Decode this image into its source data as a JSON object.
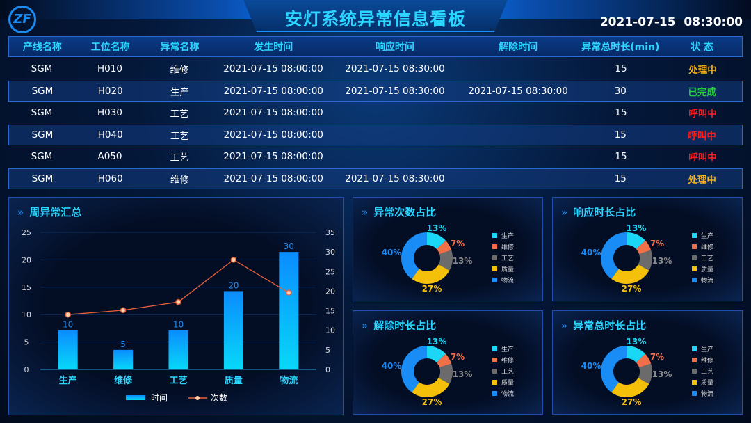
{
  "header": {
    "logo": "ZF",
    "title": "安灯系统异常信息看板",
    "date": "2021-07-15",
    "time": "08:30:00"
  },
  "table": {
    "columns": [
      "产线名称",
      "工位名称",
      "异常名称",
      "发生时间",
      "响应时间",
      "解除时间",
      "异常总时长(min)",
      "状 态"
    ],
    "rows": [
      [
        "SGM",
        "H010",
        "维修",
        "2021-07-15 08:00:00",
        "2021-07-15 08:30:00",
        "",
        "15",
        "处理中"
      ],
      [
        "SGM",
        "H020",
        "生产",
        "2021-07-15 08:00:00",
        "2021-07-15 08:30:00",
        "2021-07-15 08:30:00",
        "30",
        "已完成"
      ],
      [
        "SGM",
        "H030",
        "工艺",
        "2021-07-15 08:00:00",
        "",
        "",
        "15",
        "呼叫中"
      ],
      [
        "SGM",
        "H040",
        "工艺",
        "2021-07-15 08:00:00",
        "",
        "",
        "15",
        "呼叫中"
      ],
      [
        "SGM",
        "A050",
        "工艺",
        "2021-07-15 08:00:00",
        "",
        "",
        "15",
        "呼叫中"
      ],
      [
        "SGM",
        "H060",
        "维修",
        "2021-07-15 08:00:00",
        "2021-07-15 08:30:00",
        "",
        "15",
        "处理中"
      ]
    ],
    "status_colors": {
      "处理中": "#f5b21a",
      "已完成": "#22d03a",
      "呼叫中": "#ff1a1a"
    }
  },
  "chart_data": {
    "type": "bar",
    "title": "周异常汇总",
    "categories": [
      "生产",
      "维修",
      "工艺",
      "质量",
      "物流"
    ],
    "left_axis": {
      "ylim": [
        0,
        25
      ],
      "ticks": [
        "0",
        "5",
        "10",
        "15",
        "20",
        "25"
      ]
    },
    "right_axis": {
      "ylim": [
        0,
        35
      ],
      "ticks": [
        "0",
        "5",
        "10",
        "15",
        "20",
        "25",
        "30",
        "35"
      ]
    },
    "series": [
      {
        "name": "时间",
        "type": "bar",
        "axis": "right",
        "values": [
          10,
          5,
          10,
          20,
          30
        ]
      },
      {
        "name": "次数",
        "type": "line",
        "axis": "left",
        "values": [
          10,
          10.8,
          12.3,
          20,
          14
        ]
      }
    ],
    "legend": "bottom"
  },
  "pies": [
    {
      "title": "异常次数占比",
      "labels": [
        "13%",
        "7%",
        "13%",
        "27%",
        "40%"
      ]
    },
    {
      "title": "响应时长占比",
      "labels": [
        "13%",
        "7%",
        "13%",
        "27%",
        "40%"
      ]
    },
    {
      "title": "解除时长占比",
      "labels": [
        "13%",
        "7%",
        "13%",
        "27%",
        "40%"
      ]
    },
    {
      "title": "异常总时长占比",
      "labels": [
        "13%",
        "7%",
        "13%",
        "27%",
        "40%"
      ]
    }
  ],
  "pie_values": [
    13,
    7,
    13,
    27,
    40
  ],
  "pie_categories": [
    "生产",
    "维修",
    "工艺",
    "质量",
    "物流"
  ],
  "pie_colors": [
    "#1ad8f5",
    "#f0704a",
    "#6b6b6b",
    "#f5c00a",
    "#1a8cf5"
  ]
}
